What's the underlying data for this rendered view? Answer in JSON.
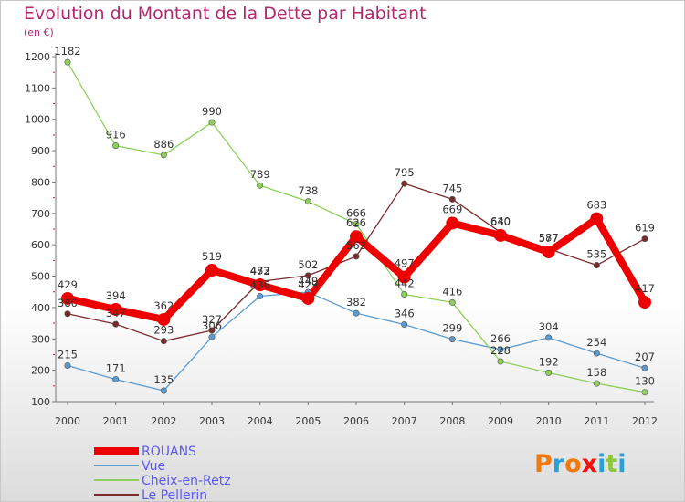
{
  "chart_data": {
    "type": "line",
    "title": "Evolution du Montant de la Dette par Habitant",
    "unit_label": "(en €)",
    "x": [
      "2000",
      "2001",
      "2002",
      "2003",
      "2004",
      "2005",
      "2006",
      "2007",
      "2008",
      "2009",
      "2010",
      "2011",
      "2012"
    ],
    "ylim": [
      100,
      1200
    ],
    "yticks": [
      100,
      200,
      300,
      400,
      500,
      600,
      700,
      800,
      900,
      1000,
      1100,
      1200
    ],
    "grid": false,
    "legend_position": "bottom-left",
    "series": [
      {
        "name": "ROUANS",
        "color": "#ee0000",
        "values": [
          429,
          394,
          362,
          519,
          472,
          429,
          626,
          497,
          669,
          630,
          577,
          683,
          417
        ]
      },
      {
        "name": "Vue",
        "color": "#5b9bd0",
        "values": [
          215,
          171,
          135,
          306,
          436,
          449,
          382,
          346,
          299,
          266,
          304,
          254,
          207
        ]
      },
      {
        "name": "Cheix-en-Retz",
        "color": "#8ed05b",
        "values": [
          1182,
          916,
          886,
          990,
          789,
          738,
          666,
          442,
          416,
          228,
          192,
          158,
          130
        ]
      },
      {
        "name": "Le Pellerin",
        "color": "#7a2b2b",
        "values": [
          380,
          347,
          293,
          327,
          483,
          502,
          563,
          795,
          745,
          640,
          587,
          535,
          619
        ]
      }
    ]
  },
  "logo": {
    "text": "Proxiti",
    "colors": [
      "#f07a10",
      "#2aa0d8",
      "#f07a10",
      "#ee1111",
      "#2aa0d8",
      "#8ec63f",
      "#2aa0d8"
    ]
  }
}
